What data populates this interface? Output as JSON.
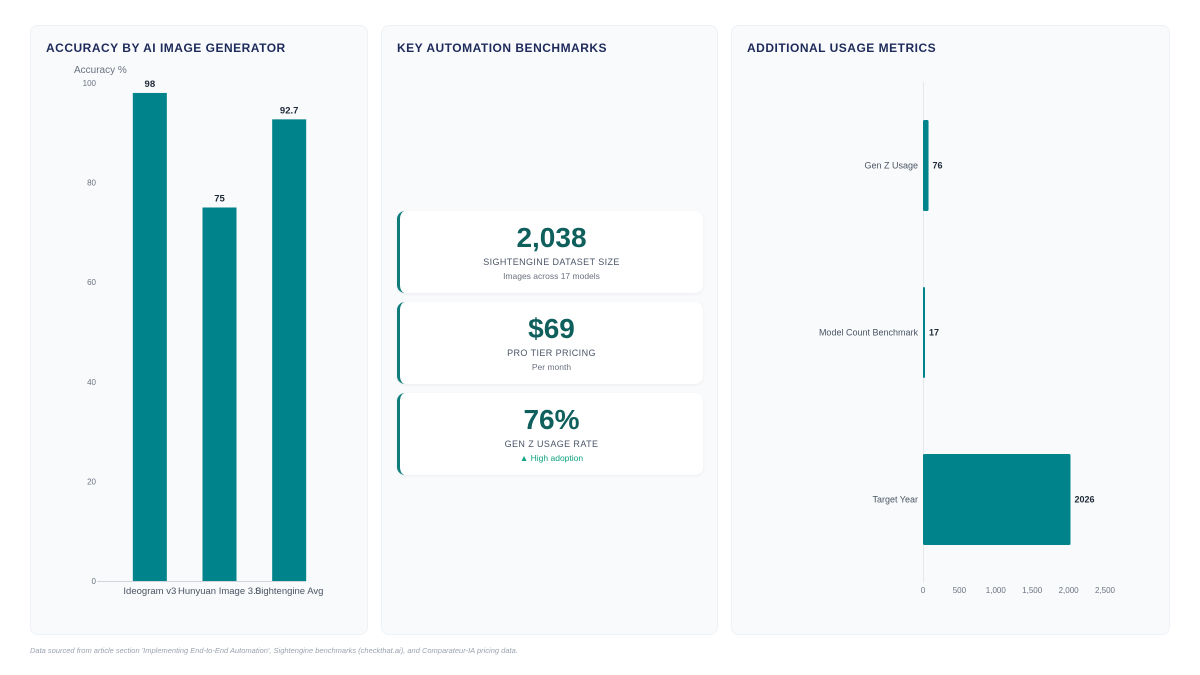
{
  "chart_data": [
    {
      "type": "bar",
      "title": "ACCURACY BY AI IMAGE GENERATOR",
      "ylabel": "Accuracy %",
      "categories": [
        "Ideogram v3",
        "Hunyuan Image 3.0",
        "Sightengine Avg"
      ],
      "values": [
        98,
        75,
        92.7
      ],
      "ylim": [
        0,
        100
      ],
      "yticks": [
        "100",
        "80",
        "60",
        "40",
        "20",
        "0"
      ],
      "data_labels": [
        "98",
        "75",
        "92.7"
      ],
      "bar_color": "#00838a",
      "grid": false
    },
    {
      "type": "bar",
      "orientation": "horizontal",
      "title": "ADDITIONAL USAGE METRICS",
      "categories": [
        "Gen Z Usage",
        "Model Count Benchmark",
        "Target Year"
      ],
      "values": [
        76,
        17,
        2026
      ],
      "xlim": [
        0,
        2500
      ],
      "xticks": [
        "0",
        "500",
        "1,000",
        "1,500",
        "2,000",
        "2,500"
      ],
      "data_labels": [
        "76",
        "17",
        "2026"
      ],
      "bar_color": "#00838a",
      "grid": false
    }
  ],
  "kpi_panel": {
    "title": "KEY AUTOMATION BENCHMARKS",
    "cards": [
      {
        "value": "2,038",
        "label": "SIGHTENGINE DATASET SIZE",
        "sub": "Images across 17 models"
      },
      {
        "value": "$69",
        "label": "PRO TIER PRICING",
        "sub": "Per month"
      },
      {
        "value": "76%",
        "label": "GEN Z USAGE RATE",
        "sub": "▲ High adoption"
      }
    ],
    "accent_color": "#0e7c7b",
    "trend_color": "#10a37f"
  },
  "footnote": "Data sourced from article section 'Implementing End-to-End Automation', Sightengine benchmarks (checkthat.ai), and Comparateur-IA pricing data."
}
